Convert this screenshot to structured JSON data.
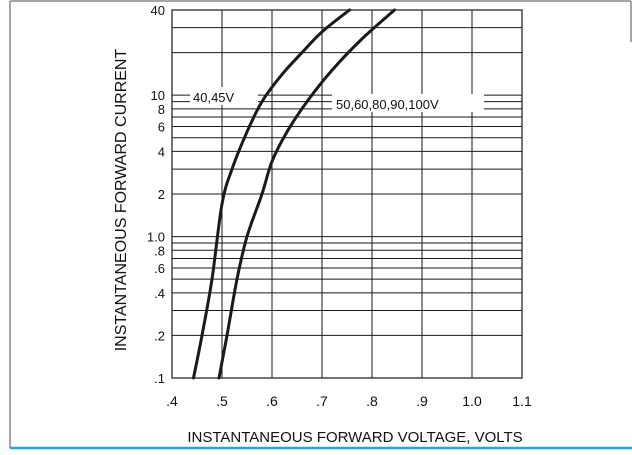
{
  "colors": {
    "curve": "#1a1a1a",
    "grid": "#1a1a1a",
    "border": "#888888",
    "accent_line": "#29a3dc"
  },
  "chart_data": {
    "type": "line",
    "title": "",
    "xlabel": "INSTANTANEOUS  FORWARD  VOLTAGE, VOLTS",
    "ylabel": "INSTANTANEOUS  FORWARD  CURRENT",
    "x_scale": "linear",
    "y_scale": "log",
    "xlim": [
      0.4,
      1.1
    ],
    "ylim": [
      0.1,
      40
    ],
    "grid": true,
    "x_ticks": [
      {
        "value": 0.4,
        "label": ".4"
      },
      {
        "value": 0.5,
        "label": ".5"
      },
      {
        "value": 0.6,
        "label": ".6"
      },
      {
        "value": 0.7,
        "label": ".7"
      },
      {
        "value": 0.8,
        "label": ".8"
      },
      {
        "value": 0.9,
        "label": ".9"
      },
      {
        "value": 1.0,
        "label": "1.0"
      },
      {
        "value": 1.1,
        "label": "1.1"
      }
    ],
    "y_ticks": [
      {
        "value": 0.1,
        "label": ".1"
      },
      {
        "value": 0.2,
        "label": ".2"
      },
      {
        "value": 0.4,
        "label": ".4"
      },
      {
        "value": 0.6,
        "label": ".6"
      },
      {
        "value": 0.8,
        "label": ".8"
      },
      {
        "value": 1.0,
        "label": "1.0"
      },
      {
        "value": 2,
        "label": "2"
      },
      {
        "value": 4,
        "label": "4"
      },
      {
        "value": 6,
        "label": "6"
      },
      {
        "value": 8,
        "label": "8"
      },
      {
        "value": 10,
        "label": "10"
      },
      {
        "value": 40,
        "label": "40"
      }
    ],
    "y_gridlines": [
      0.1,
      0.2,
      0.3,
      0.4,
      0.5,
      0.6,
      0.7,
      0.8,
      0.9,
      1,
      2,
      3,
      4,
      5,
      6,
      7,
      8,
      9,
      10,
      20,
      30,
      40
    ],
    "series": [
      {
        "name": "40,45V",
        "x": [
          0.443,
          0.46,
          0.48,
          0.5,
          0.52,
          0.55,
          0.58,
          0.62,
          0.66,
          0.7,
          0.755
        ],
        "y": [
          0.1,
          0.2,
          0.5,
          1.7,
          3.0,
          5.5,
          9.0,
          14.0,
          20.0,
          28.0,
          40.0
        ]
      },
      {
        "name": "50,60,80,90,100V",
        "x": [
          0.494,
          0.51,
          0.53,
          0.55,
          0.58,
          0.6,
          0.63,
          0.67,
          0.72,
          0.78,
          0.845
        ],
        "y": [
          0.1,
          0.2,
          0.5,
          1.0,
          2.0,
          3.4,
          5.5,
          9.0,
          15.0,
          25.0,
          40.0
        ]
      }
    ]
  }
}
